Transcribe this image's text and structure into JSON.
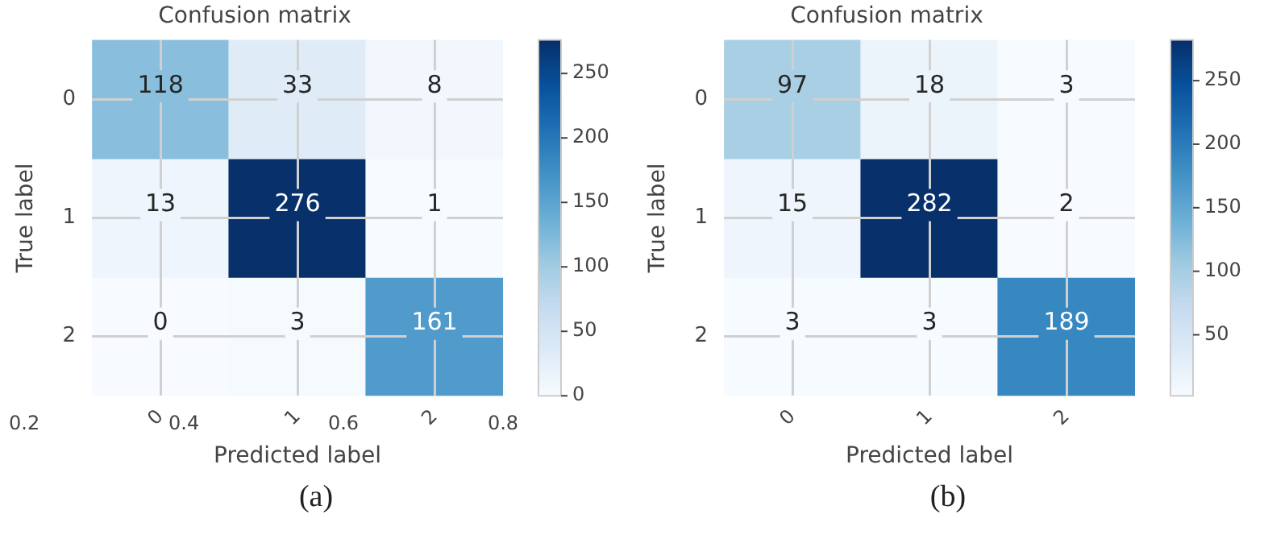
{
  "chart_data": [
    {
      "type": "heatmap",
      "title": "Confusion matrix",
      "xlabel": "Predicted label",
      "ylabel": "True label",
      "categories": [
        "0",
        "1",
        "2"
      ],
      "y_categories": [
        "0",
        "1",
        "2"
      ],
      "cells": [
        [
          118,
          33,
          8
        ],
        [
          13,
          276,
          1
        ],
        [
          0,
          3,
          161
        ]
      ],
      "clim": [
        0,
        276
      ],
      "cticks": [
        0,
        50,
        100,
        150,
        200,
        250
      ],
      "x2lim": [
        0.2,
        0.8
      ],
      "x2ticks": [
        0.2,
        0.4,
        0.6,
        0.8
      ],
      "data_labels": true,
      "grid": true,
      "annotations": [
        "(a)"
      ]
    },
    {
      "type": "heatmap",
      "title": "Confusion matrix",
      "xlabel": "Predicted label",
      "ylabel": "True label",
      "categories": [
        "0",
        "1",
        "2"
      ],
      "y_categories": [
        "0",
        "1",
        "2"
      ],
      "cells": [
        [
          97,
          18,
          3
        ],
        [
          15,
          282,
          2
        ],
        [
          3,
          3,
          189
        ]
      ],
      "clim": [
        2,
        282
      ],
      "cticks": [
        50,
        100,
        150,
        200,
        250
      ],
      "data_labels": true,
      "grid": true,
      "annotations": [
        "(b)"
      ]
    }
  ]
}
